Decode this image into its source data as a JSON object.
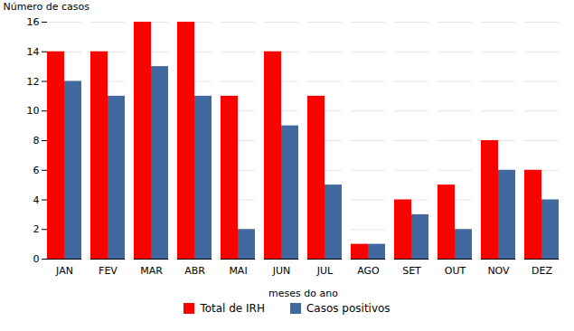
{
  "chart_data": {
    "type": "bar",
    "categories": [
      "JAN",
      "FEV",
      "MAR",
      "ABR",
      "MAI",
      "JUN",
      "JUL",
      "AGO",
      "SET",
      "OUT",
      "NOV",
      "DEZ"
    ],
    "series": [
      {
        "name": "Total de IRH",
        "color": "#FF0000",
        "values": [
          14,
          14,
          16,
          16,
          11,
          14,
          11,
          1,
          4,
          5,
          8,
          6
        ]
      },
      {
        "name": "Casos positivos",
        "color": "#4169A0",
        "values": [
          12,
          11,
          13,
          11,
          2,
          9,
          5,
          1,
          3,
          2,
          6,
          4
        ]
      }
    ],
    "xlabel": "meses do ano",
    "ylabel": "Número de casos",
    "ylim": [
      0,
      16
    ],
    "yticks": [
      0,
      2,
      4,
      6,
      8,
      10,
      12,
      14,
      16
    ],
    "grid": true,
    "legend": "bottom"
  }
}
